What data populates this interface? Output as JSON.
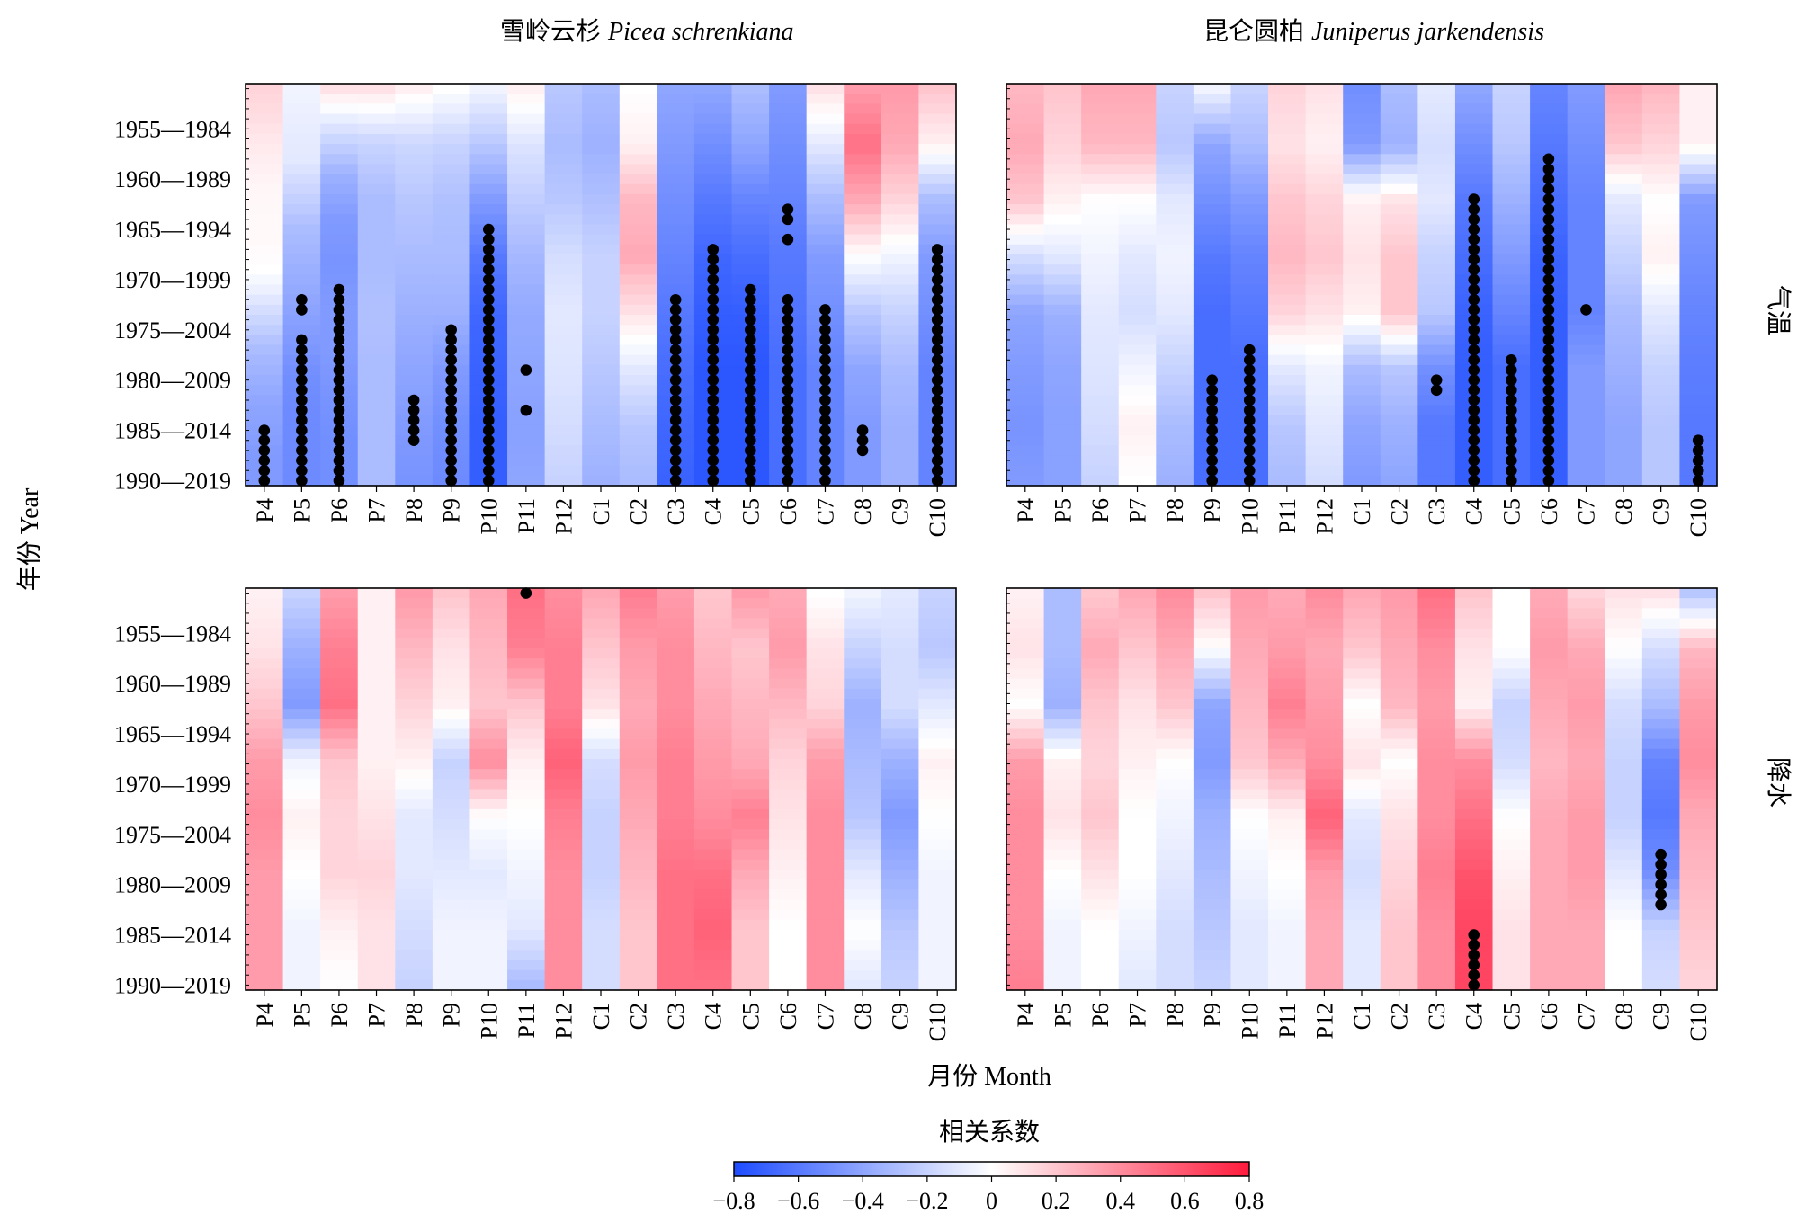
{
  "chart_data": {
    "type": "heatmap",
    "titles": [
      "雪岭云杉",
      "Picea schrenkiana",
      "昆仑圆柏",
      "Juniperus jarkendensis"
    ],
    "row_labels": [
      "气温",
      "降水"
    ],
    "xlabel": "月份 Month",
    "ylabel": "年份 Year",
    "x_categories": [
      "P4",
      "P5",
      "P6",
      "P7",
      "P8",
      "P9",
      "P10",
      "P11",
      "P12",
      "C1",
      "C2",
      "C3",
      "C4",
      "C5",
      "C6",
      "C7",
      "C8",
      "C9",
      "C10"
    ],
    "y_windows": [
      "1951—1980",
      "1952—1981",
      "1953—1982",
      "1954—1983",
      "1955—1984",
      "1956—1985",
      "1957—1986",
      "1958—1987",
      "1959—1988",
      "1960—1989",
      "1961—1990",
      "1962—1991",
      "1963—1992",
      "1964—1993",
      "1965—1994",
      "1966—1995",
      "1967—1996",
      "1968—1997",
      "1969—1998",
      "1970—1999",
      "1971—2000",
      "1972—2001",
      "1973—2002",
      "1974—2003",
      "1975—2004",
      "1976—2005",
      "1977—2006",
      "1978—2007",
      "1979—2008",
      "1980—2009",
      "1981—2010",
      "1982—2011",
      "1983—2012",
      "1984—2013",
      "1985—2014",
      "1986—2015",
      "1987—2016",
      "1988—2017",
      "1989—2018",
      "1990—2019"
    ],
    "y_tick_labels": [
      "1955—1984",
      "1960—1989",
      "1965—1994",
      "1970—1999",
      "1975—2004",
      "1980—2009",
      "1985—2014",
      "1990—2019"
    ],
    "colorbar": {
      "title": "相关系数",
      "range": [
        -0.8,
        0.8
      ],
      "ticks": [
        "−0.8",
        "−0.6",
        "−0.4",
        "−0.2",
        "0",
        "0.2",
        "0.4",
        "0.6",
        "0.8"
      ],
      "colors": {
        "neg": "#1e4cff",
        "mid": "#ffffff",
        "pos": "#ff1a3c"
      }
    },
    "panels": [
      {
        "species": "Picea schrenkiana",
        "variable": "气温",
        "column_profiles": [
          [
            0.15,
            0.12,
            0.08,
            0.05,
            0.03,
            0.02,
            0.02,
            0.0,
            -0.1,
            -0.2,
            -0.3,
            -0.35,
            -0.4,
            -0.42,
            -0.45,
            -0.45
          ],
          [
            -0.05,
            -0.08,
            -0.1,
            -0.2,
            -0.3,
            -0.35,
            -0.4,
            -0.45,
            -0.5,
            -0.52,
            -0.52,
            -0.52
          ],
          [
            0.1,
            -0.15,
            -0.35,
            -0.45,
            -0.48,
            -0.45,
            -0.45,
            -0.48,
            -0.5,
            -0.5
          ],
          [
            0.1,
            -0.2,
            -0.3,
            -0.3,
            -0.28,
            -0.3,
            -0.3,
            -0.3
          ],
          [
            0.05,
            -0.18,
            -0.25,
            -0.3,
            -0.35,
            -0.4,
            -0.45,
            -0.48
          ],
          [
            0.0,
            -0.2,
            -0.28,
            -0.3,
            -0.35,
            -0.45,
            -0.5,
            -0.52
          ],
          [
            -0.05,
            -0.25,
            -0.45,
            -0.6,
            -0.68,
            -0.7,
            -0.72,
            -0.72
          ],
          [
            0.05,
            -0.12,
            -0.22,
            -0.32,
            -0.38,
            -0.4,
            -0.42,
            -0.4
          ],
          [
            -0.25,
            -0.3,
            -0.25,
            -0.15,
            -0.1,
            -0.12,
            -0.15,
            -0.2
          ],
          [
            -0.3,
            -0.35,
            -0.28,
            -0.2,
            -0.2,
            -0.25,
            -0.3,
            -0.35
          ],
          [
            0.0,
            0.05,
            0.25,
            0.3,
            0.1,
            -0.1,
            -0.25,
            -0.3
          ],
          [
            -0.4,
            -0.45,
            -0.5,
            -0.55,
            -0.6,
            -0.65,
            -0.68,
            -0.7
          ],
          [
            -0.4,
            -0.5,
            -0.6,
            -0.68,
            -0.72,
            -0.75,
            -0.75,
            -0.75
          ],
          [
            -0.3,
            -0.4,
            -0.55,
            -0.65,
            -0.72,
            -0.75,
            -0.75,
            -0.75
          ],
          [
            -0.45,
            -0.5,
            -0.55,
            -0.6,
            -0.62,
            -0.65,
            -0.65,
            -0.65
          ],
          [
            0.1,
            -0.1,
            -0.3,
            -0.45,
            -0.5,
            -0.55,
            -0.55,
            -0.55
          ],
          [
            0.35,
            0.5,
            0.3,
            0.0,
            -0.25,
            -0.4,
            -0.45,
            -0.45
          ],
          [
            0.35,
            0.3,
            0.15,
            -0.05,
            -0.2,
            -0.3,
            -0.35,
            -0.35
          ],
          [
            0.2,
            0.05,
            -0.3,
            -0.45,
            -0.5,
            -0.55,
            -0.55,
            -0.55
          ]
        ],
        "significant_ranges": [
          [
            34,
            39
          ],
          [
            21,
            22
          ],
          [
            25,
            39
          ],
          [
            20,
            39
          ],
          [
            31,
            35
          ],
          [
            24,
            39
          ],
          [
            14,
            39
          ],
          [
            28,
            28
          ],
          [
            32,
            32
          ],
          [
            21,
            39
          ],
          [
            16,
            39
          ],
          [
            20,
            39
          ],
          [
            21,
            39
          ],
          [
            12,
            13
          ],
          [
            15,
            15
          ],
          [
            22,
            39
          ],
          [
            34,
            36
          ],
          [
            16,
            39
          ]
        ],
        "significant_columns": [
          0,
          1,
          1,
          2,
          4,
          5,
          6,
          7,
          7,
          11,
          12,
          13,
          14,
          14,
          14,
          15,
          16,
          18
        ]
      },
      {
        "species": "Juniperus jarkendensis",
        "variable": "气温",
        "column_profiles": [
          [
            0.25,
            0.3,
            0.2,
            -0.15,
            -0.4,
            -0.45,
            -0.48,
            -0.45
          ],
          [
            0.2,
            0.15,
            0.05,
            -0.1,
            -0.35,
            -0.4,
            -0.42,
            -0.42
          ],
          [
            0.3,
            0.25,
            0.0,
            -0.05,
            -0.1,
            -0.12,
            -0.15,
            -0.2
          ],
          [
            0.3,
            0.25,
            0.0,
            -0.1,
            -0.15,
            -0.05,
            0.05,
            0.0
          ],
          [
            -0.2,
            -0.25,
            -0.1,
            -0.05,
            -0.1,
            -0.2,
            -0.3,
            -0.35
          ],
          [
            -0.05,
            -0.4,
            -0.5,
            -0.6,
            -0.65,
            -0.65,
            -0.65,
            -0.65
          ],
          [
            -0.2,
            -0.3,
            -0.45,
            -0.55,
            -0.6,
            -0.65,
            -0.65,
            -0.65
          ],
          [
            0.15,
            0.1,
            0.2,
            0.25,
            0.15,
            -0.1,
            -0.25,
            -0.3
          ],
          [
            0.1,
            0.05,
            0.15,
            0.2,
            0.1,
            -0.05,
            -0.1,
            -0.15
          ],
          [
            -0.5,
            -0.45,
            0.05,
            0.1,
            0.05,
            -0.3,
            -0.4,
            -0.45
          ],
          [
            -0.3,
            -0.35,
            0.1,
            0.2,
            0.2,
            -0.25,
            -0.35,
            -0.4
          ],
          [
            -0.1,
            -0.15,
            -0.1,
            -0.2,
            -0.25,
            -0.5,
            -0.6,
            -0.6
          ],
          [
            -0.4,
            -0.5,
            -0.6,
            -0.65,
            -0.7,
            -0.72,
            -0.72,
            -0.72
          ],
          [
            -0.2,
            -0.25,
            -0.35,
            -0.45,
            -0.55,
            -0.65,
            -0.65,
            -0.65
          ],
          [
            -0.55,
            -0.6,
            -0.65,
            -0.7,
            -0.72,
            -0.72,
            -0.72,
            -0.72
          ],
          [
            -0.45,
            -0.5,
            -0.55,
            -0.55,
            -0.55,
            -0.45,
            -0.45,
            -0.45
          ],
          [
            0.3,
            0.2,
            -0.1,
            -0.2,
            -0.3,
            -0.35,
            -0.4,
            -0.4
          ],
          [
            0.25,
            0.15,
            0.0,
            0.05,
            -0.1,
            -0.2,
            -0.25,
            -0.25
          ],
          [
            0.05,
            0.05,
            -0.45,
            -0.5,
            -0.55,
            -0.58,
            -0.6,
            -0.6
          ]
        ],
        "significant_ranges": [
          [
            29,
            39
          ],
          [
            26,
            39
          ],
          [
            29,
            30
          ],
          [
            11,
            39
          ],
          [
            27,
            39
          ],
          [
            7,
            39
          ],
          [
            22,
            22
          ],
          [
            35,
            39
          ]
        ],
        "significant_columns": [
          5,
          6,
          11,
          12,
          13,
          14,
          15,
          18
        ]
      },
      {
        "species": "Picea schrenkiana",
        "variable": "降水",
        "column_profiles": [
          [
            0.05,
            0.1,
            0.2,
            0.35,
            0.4,
            0.35,
            0.35,
            0.35
          ],
          [
            -0.2,
            -0.35,
            -0.45,
            -0.05,
            0.05,
            0.0,
            -0.05,
            -0.05
          ],
          [
            0.35,
            0.45,
            0.5,
            0.2,
            0.15,
            0.15,
            0.05,
            0.0
          ],
          [
            0.05,
            0.05,
            0.05,
            0.05,
            0.1,
            0.15,
            0.1,
            0.1
          ],
          [
            0.35,
            0.25,
            0.15,
            0.05,
            -0.1,
            -0.1,
            -0.15,
            -0.2
          ],
          [
            0.2,
            0.1,
            0.05,
            -0.2,
            -0.15,
            -0.1,
            -0.05,
            -0.05
          ],
          [
            0.3,
            0.25,
            0.2,
            0.4,
            0.0,
            -0.1,
            -0.05,
            -0.05
          ],
          [
            0.5,
            0.45,
            0.2,
            0.05,
            0.0,
            -0.05,
            -0.1,
            -0.3
          ],
          [
            0.4,
            0.45,
            0.45,
            0.55,
            0.45,
            0.4,
            0.4,
            0.4
          ],
          [
            0.3,
            0.2,
            0.1,
            -0.15,
            -0.2,
            -0.2,
            -0.15,
            -0.15
          ],
          [
            0.45,
            0.35,
            0.3,
            0.35,
            0.3,
            0.25,
            0.2,
            0.2
          ],
          [
            0.35,
            0.4,
            0.4,
            0.45,
            0.45,
            0.5,
            0.5,
            0.5
          ],
          [
            0.2,
            0.25,
            0.3,
            0.35,
            0.4,
            0.5,
            0.55,
            0.5
          ],
          [
            0.35,
            0.2,
            0.25,
            0.3,
            0.45,
            0.3,
            0.2,
            0.2
          ],
          [
            0.3,
            0.35,
            0.25,
            0.15,
            0.1,
            0.05,
            0.0,
            0.0
          ],
          [
            0.0,
            0.1,
            0.15,
            0.35,
            0.4,
            0.4,
            0.4,
            0.4
          ],
          [
            -0.05,
            -0.2,
            -0.35,
            -0.3,
            -0.25,
            -0.1,
            0.0,
            -0.1
          ],
          [
            -0.1,
            -0.15,
            -0.15,
            -0.35,
            -0.45,
            -0.35,
            -0.25,
            -0.2
          ],
          [
            -0.2,
            -0.25,
            -0.1,
            0.05,
            0.0,
            -0.05,
            -0.05,
            -0.05
          ]
        ],
        "significant_ranges": [
          [
            0,
            0
          ]
        ],
        "significant_columns": [
          7
        ]
      },
      {
        "species": "Juniperus jarkendensis",
        "variable": "降水",
        "column_profiles": [
          [
            0.05,
            0.1,
            0.0,
            0.35,
            0.4,
            0.4,
            0.4,
            0.45
          ],
          [
            -0.3,
            -0.3,
            -0.35,
            0.05,
            0.1,
            0.0,
            -0.05,
            -0.05
          ],
          [
            0.2,
            0.3,
            0.2,
            0.15,
            0.2,
            0.1,
            0.0,
            0.0
          ],
          [
            0.3,
            0.2,
            0.1,
            0.05,
            0.0,
            0.0,
            -0.05,
            -0.1
          ],
          [
            0.4,
            0.3,
            0.2,
            0.0,
            -0.05,
            -0.1,
            -0.15,
            -0.15
          ],
          [
            0.2,
            0.0,
            -0.4,
            -0.45,
            -0.35,
            -0.3,
            -0.25,
            -0.2
          ],
          [
            0.35,
            0.3,
            0.25,
            0.2,
            0.0,
            -0.05,
            -0.1,
            -0.1
          ],
          [
            0.3,
            0.35,
            0.45,
            0.3,
            0.05,
            0.0,
            -0.05,
            -0.05
          ],
          [
            0.4,
            0.3,
            0.35,
            0.4,
            0.55,
            0.35,
            0.3,
            0.3
          ],
          [
            0.3,
            0.2,
            0.0,
            0.1,
            -0.1,
            -0.15,
            -0.1,
            -0.1
          ],
          [
            0.35,
            0.3,
            0.25,
            0.0,
            0.1,
            0.15,
            0.2,
            0.2
          ],
          [
            0.5,
            0.4,
            0.35,
            0.4,
            0.4,
            0.45,
            0.4,
            0.4
          ],
          [
            0.2,
            0.1,
            0.05,
            0.4,
            0.5,
            0.6,
            0.65,
            0.65
          ],
          [
            0.0,
            0.0,
            -0.2,
            -0.15,
            0.0,
            0.05,
            0.1,
            0.1
          ],
          [
            0.3,
            0.35,
            0.3,
            0.25,
            0.3,
            0.3,
            0.3,
            0.3
          ],
          [
            0.15,
            0.3,
            0.35,
            0.3,
            0.35,
            0.35,
            0.3,
            0.3
          ],
          [
            0.1,
            0.0,
            -0.15,
            -0.2,
            -0.2,
            -0.1,
            0.0,
            0.0
          ],
          [
            0.1,
            -0.15,
            -0.3,
            -0.55,
            -0.6,
            -0.5,
            -0.2,
            -0.15
          ],
          [
            -0.25,
            0.25,
            0.35,
            0.4,
            0.3,
            0.25,
            0.2,
            0.15
          ]
        ],
        "significant_ranges": [
          [
            34,
            39
          ],
          [
            26,
            31
          ]
        ],
        "significant_columns": [
          12,
          17
        ]
      }
    ]
  }
}
